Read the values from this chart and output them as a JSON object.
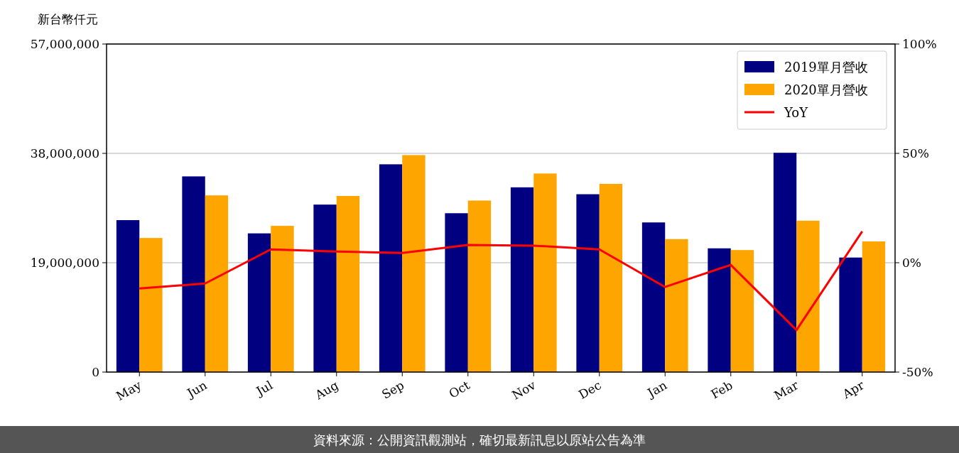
{
  "chart_data": {
    "type": "bar",
    "ylabel": "新台幣仟元",
    "categories": [
      "May",
      "Jun",
      "Jul",
      "Aug",
      "Sep",
      "Oct",
      "Nov",
      "Dec",
      "Jan",
      "Feb",
      "Mar",
      "Apr"
    ],
    "series": [
      {
        "name": "2019單月營收",
        "color": "#000080",
        "values": [
          26400000,
          34000000,
          24100000,
          29100000,
          36100000,
          27600000,
          32100000,
          30900000,
          26000000,
          21500000,
          38100000,
          19900000
        ]
      },
      {
        "name": "2020單月營收",
        "color": "#ffa500",
        "values": [
          23300000,
          30700000,
          25400000,
          30600000,
          37700000,
          29800000,
          34500000,
          32700000,
          23100000,
          21200000,
          26300000,
          22700000
        ]
      },
      {
        "name": "YoY",
        "type": "line",
        "axis": "y2",
        "color": "#ff0000",
        "values": [
          -11.8,
          -9.5,
          6.1,
          5.1,
          4.5,
          8.1,
          7.8,
          6.1,
          -11.1,
          -1.0,
          -30.8,
          14.3
        ]
      }
    ],
    "ylim": [
      0,
      57000000
    ],
    "yticks": [
      {
        "value": 0,
        "label": "0"
      },
      {
        "value": 19000000,
        "label": "19,000,000"
      },
      {
        "value": 38000000,
        "label": "38,000,000"
      },
      {
        "value": 57000000,
        "label": "57,000,000"
      }
    ],
    "y2lim": [
      -50,
      100
    ],
    "y2ticks": [
      {
        "value": -50,
        "label": "-50%"
      },
      {
        "value": 0,
        "label": "0%"
      },
      {
        "value": 50,
        "label": "50%"
      },
      {
        "value": 100,
        "label": "100%"
      }
    ],
    "grid": "y",
    "legend": "top right",
    "annotations": [
      "資料來源：公開資訊觀測站，確切最新訊息以原站公告為準"
    ]
  }
}
